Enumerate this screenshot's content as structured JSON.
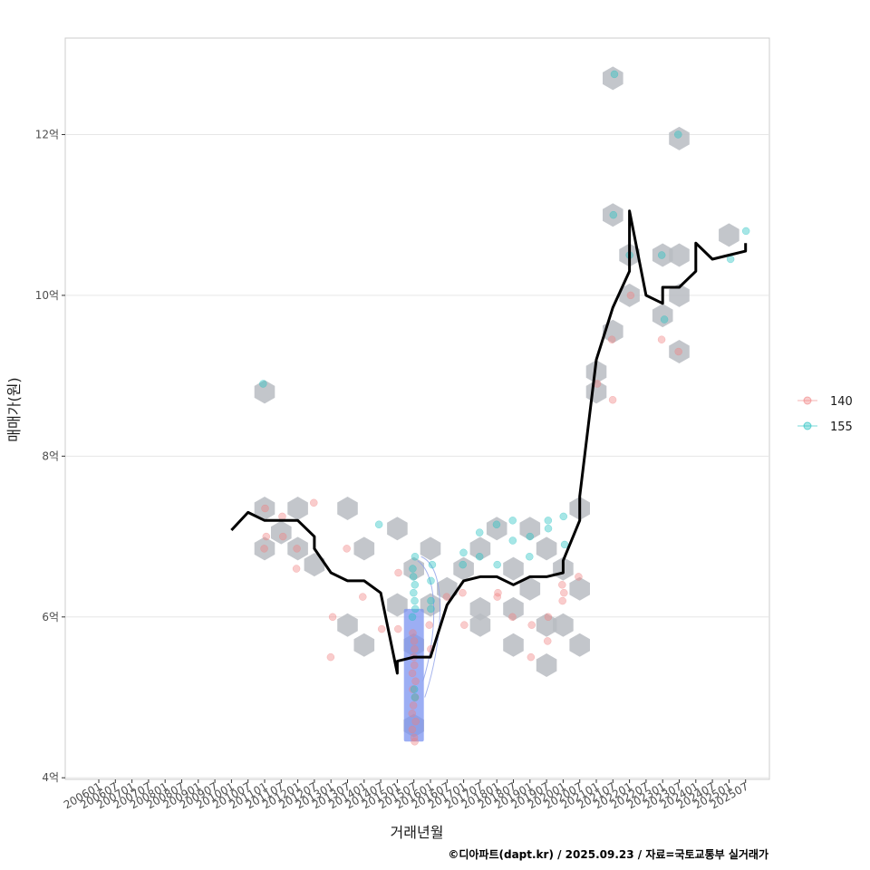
{
  "chart_data": {
    "type": "scatter",
    "xlabel": "거래년월",
    "ylabel": "매매가(원)",
    "caption": "©디아파트(dapt.kr) / 2025.09.23 / 자료=국토교통부 실거래가",
    "x_ticks": [
      "200601",
      "200607",
      "200701",
      "200707",
      "200801",
      "200807",
      "200901",
      "200907",
      "201001",
      "201007",
      "201101",
      "201107",
      "201201",
      "201207",
      "201301",
      "201307",
      "201401",
      "201407",
      "201501",
      "201507",
      "201601",
      "201607",
      "201701",
      "201707",
      "201801",
      "201807",
      "201901",
      "201907",
      "202001",
      "202007",
      "202101",
      "202107",
      "202201",
      "202207",
      "202301",
      "202307",
      "202401",
      "202407",
      "202501",
      "202507"
    ],
    "y_ticks": [
      {
        "value": 4,
        "label": "4억"
      },
      {
        "value": 6,
        "label": "6억"
      },
      {
        "value": 8,
        "label": "8억"
      },
      {
        "value": 10,
        "label": "10억"
      },
      {
        "value": 12,
        "label": "12억"
      }
    ],
    "xlim": [
      "200601",
      "202601"
    ],
    "ylim": [
      3.98,
      13.2
    ],
    "grid": "horizontal",
    "legend_position": "right",
    "colors": {
      "series_140": "#f08080",
      "series_155": "#20c0c0",
      "line": "#000000",
      "hex": "#b8bcc2",
      "grid": "#e6e6e6",
      "frame": "#cccccc"
    },
    "series": [
      {
        "name": "140",
        "color": "#f08080",
        "points": [
          [
            "201101",
            7.35
          ],
          [
            "201101",
            7.0
          ],
          [
            "201101",
            6.85
          ],
          [
            "201107",
            7.25
          ],
          [
            "201107",
            7.0
          ],
          [
            "201201",
            6.85
          ],
          [
            "201201",
            6.6
          ],
          [
            "201207",
            7.42
          ],
          [
            "201301",
            6.0
          ],
          [
            "201301",
            5.5
          ],
          [
            "201307",
            6.85
          ],
          [
            "201401",
            6.25
          ],
          [
            "201407",
            5.85
          ],
          [
            "201501",
            6.55
          ],
          [
            "201501",
            5.85
          ],
          [
            "201507",
            5.8
          ],
          [
            "201507",
            5.7
          ],
          [
            "201507",
            5.6
          ],
          [
            "201507",
            5.5
          ],
          [
            "201507",
            5.4
          ],
          [
            "201507",
            5.3
          ],
          [
            "201507",
            5.2
          ],
          [
            "201507",
            5.1
          ],
          [
            "201507",
            5.0
          ],
          [
            "201507",
            4.9
          ],
          [
            "201507",
            4.8
          ],
          [
            "201507",
            4.7
          ],
          [
            "201507",
            4.6
          ],
          [
            "201507",
            4.5
          ],
          [
            "201507",
            4.45
          ],
          [
            "201601",
            5.9
          ],
          [
            "201601",
            5.6
          ],
          [
            "201607",
            6.25
          ],
          [
            "201701",
            6.3
          ],
          [
            "201701",
            5.9
          ],
          [
            "201801",
            6.3
          ],
          [
            "201801",
            6.25
          ],
          [
            "201807",
            6.0
          ],
          [
            "201901",
            5.9
          ],
          [
            "201901",
            5.5
          ],
          [
            "201907",
            6.0
          ],
          [
            "201907",
            5.7
          ],
          [
            "202001",
            6.3
          ],
          [
            "202001",
            6.2
          ],
          [
            "202001",
            6.4
          ],
          [
            "202007",
            6.5
          ],
          [
            "202101",
            8.9
          ],
          [
            "202107",
            9.45
          ],
          [
            "202107",
            8.7
          ],
          [
            "202201",
            10.0
          ],
          [
            "202301",
            9.45
          ],
          [
            "202307",
            9.3
          ]
        ]
      },
      {
        "name": "155",
        "color": "#20c0c0",
        "points": [
          [
            "201101",
            8.9
          ],
          [
            "201407",
            7.15
          ],
          [
            "201507",
            6.75
          ],
          [
            "201507",
            6.6
          ],
          [
            "201507",
            6.5
          ],
          [
            "201507",
            6.4
          ],
          [
            "201507",
            6.3
          ],
          [
            "201507",
            6.2
          ],
          [
            "201507",
            6.1
          ],
          [
            "201507",
            6.0
          ],
          [
            "201507",
            5.1
          ],
          [
            "201507",
            5.0
          ],
          [
            "201601",
            6.65
          ],
          [
            "201601",
            6.45
          ],
          [
            "201601",
            6.2
          ],
          [
            "201601",
            6.1
          ],
          [
            "201701",
            6.65
          ],
          [
            "201701",
            6.8
          ],
          [
            "201707",
            7.05
          ],
          [
            "201707",
            6.75
          ],
          [
            "201801",
            6.65
          ],
          [
            "201801",
            7.15
          ],
          [
            "201807",
            7.2
          ],
          [
            "201807",
            6.95
          ],
          [
            "201901",
            7.0
          ],
          [
            "201901",
            6.75
          ],
          [
            "201907",
            7.2
          ],
          [
            "201907",
            7.1
          ],
          [
            "202001",
            7.25
          ],
          [
            "202001",
            6.9
          ],
          [
            "202107",
            11.0
          ],
          [
            "202107",
            12.75
          ],
          [
            "202201",
            10.5
          ],
          [
            "202301",
            10.5
          ],
          [
            "202301",
            9.7
          ],
          [
            "202307",
            12.0
          ],
          [
            "202507",
            10.8
          ],
          [
            "202501",
            10.45
          ]
        ]
      }
    ],
    "line": [
      [
        "201001",
        7.08
      ],
      [
        "201007",
        7.3
      ],
      [
        "201101",
        7.2
      ],
      [
        "201107",
        7.2
      ],
      [
        "201201",
        7.2
      ],
      [
        "201207",
        7.0
      ],
      [
        "201207",
        6.85
      ],
      [
        "201301",
        6.55
      ],
      [
        "201307",
        6.45
      ],
      [
        "201401",
        6.45
      ],
      [
        "201407",
        6.3
      ],
      [
        "201501",
        5.3
      ],
      [
        "201501",
        5.45
      ],
      [
        "201507",
        5.5
      ],
      [
        "201601",
        5.5
      ],
      [
        "201607",
        6.15
      ],
      [
        "201701",
        6.45
      ],
      [
        "201707",
        6.5
      ],
      [
        "201801",
        6.5
      ],
      [
        "201807",
        6.4
      ],
      [
        "201901",
        6.5
      ],
      [
        "201907",
        6.5
      ],
      [
        "202001",
        6.55
      ],
      [
        "202001",
        6.7
      ],
      [
        "202007",
        7.2
      ],
      [
        "202007",
        7.5
      ],
      [
        "202101",
        9.2
      ],
      [
        "202107",
        9.85
      ],
      [
        "202201",
        10.3
      ],
      [
        "202201",
        11.05
      ],
      [
        "202207",
        10.0
      ],
      [
        "202301",
        9.9
      ],
      [
        "202301",
        10.1
      ],
      [
        "202307",
        10.1
      ],
      [
        "202401",
        10.3
      ],
      [
        "202401",
        10.65
      ],
      [
        "202407",
        10.45
      ],
      [
        "202501",
        10.5
      ],
      [
        "202507",
        10.55
      ],
      [
        "202507",
        10.65
      ]
    ],
    "hex_bins": [
      [
        "201101",
        8.8
      ],
      [
        "201101",
        7.35
      ],
      [
        "201101",
        6.85
      ],
      [
        "201107",
        7.05
      ],
      [
        "201201",
        7.35
      ],
      [
        "201201",
        6.85
      ],
      [
        "201207",
        6.65
      ],
      [
        "201307",
        7.35
      ],
      [
        "201307",
        5.9
      ],
      [
        "201401",
        5.65
      ],
      [
        "201401",
        6.85
      ],
      [
        "201501",
        7.1
      ],
      [
        "201501",
        6.15
      ],
      [
        "201507",
        6.6
      ],
      [
        "201507",
        5.65
      ],
      [
        "201507",
        4.65
      ],
      [
        "201601",
        6.85
      ],
      [
        "201601",
        6.15
      ],
      [
        "201607",
        6.35
      ],
      [
        "201701",
        6.6
      ],
      [
        "201707",
        6.85
      ],
      [
        "201707",
        6.1
      ],
      [
        "201707",
        5.9
      ],
      [
        "201801",
        7.1
      ],
      [
        "201807",
        6.6
      ],
      [
        "201807",
        6.1
      ],
      [
        "201807",
        5.65
      ],
      [
        "201901",
        7.1
      ],
      [
        "201901",
        6.35
      ],
      [
        "201907",
        6.85
      ],
      [
        "201907",
        5.9
      ],
      [
        "201907",
        5.4
      ],
      [
        "202001",
        6.6
      ],
      [
        "202001",
        5.9
      ],
      [
        "202007",
        6.35
      ],
      [
        "202007",
        7.35
      ],
      [
        "202007",
        5.65
      ],
      [
        "202101",
        9.05
      ],
      [
        "202101",
        8.8
      ],
      [
        "202107",
        9.55
      ],
      [
        "202107",
        11.0
      ],
      [
        "202107",
        12.7
      ],
      [
        "202201",
        10.5
      ],
      [
        "202201",
        10.0
      ],
      [
        "202301",
        10.5
      ],
      [
        "202301",
        9.75
      ],
      [
        "202307",
        10.5
      ],
      [
        "202307",
        11.95
      ],
      [
        "202307",
        10.0
      ],
      [
        "202307",
        9.3
      ],
      [
        "202501",
        10.75
      ]
    ],
    "legend": [
      {
        "label": "140",
        "color": "#f08080"
      },
      {
        "label": "155",
        "color": "#20c0c0"
      }
    ]
  }
}
